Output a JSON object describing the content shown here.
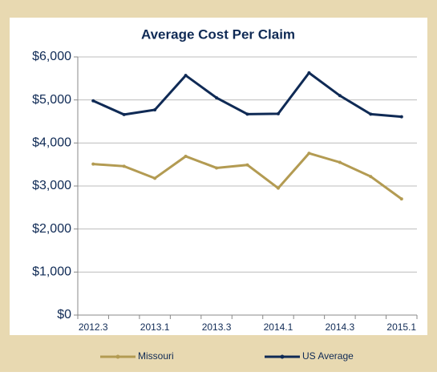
{
  "chart_data": {
    "type": "line",
    "title": "Average Cost Per Claim",
    "categories": [
      "2012.3",
      null,
      "2013.1",
      null,
      "2013.3",
      null,
      "2014.1",
      null,
      "2014.3",
      null,
      "2015.1"
    ],
    "series": [
      {
        "name": "Missouri",
        "color": "#b39b52",
        "values": [
          3510,
          3460,
          3180,
          3690,
          3420,
          3490,
          2950,
          3760,
          3550,
          3220,
          2700
        ]
      },
      {
        "name": "US Average",
        "color": "#0f2a55",
        "values": [
          4980,
          4660,
          4770,
          5570,
          5050,
          4670,
          4680,
          5630,
          5100,
          4670,
          4610
        ]
      }
    ],
    "ylim": [
      0,
      6000
    ],
    "yticks": [
      {
        "value": 0,
        "label": "$0"
      },
      {
        "value": 1000,
        "label": "$1,000"
      },
      {
        "value": 2000,
        "label": "$2,000"
      },
      {
        "value": 3000,
        "label": "$3,000"
      },
      {
        "value": 4000,
        "label": "$4,000"
      },
      {
        "value": 5000,
        "label": "$5,000"
      },
      {
        "value": 6000,
        "label": "$6,000"
      }
    ],
    "grid": true
  }
}
